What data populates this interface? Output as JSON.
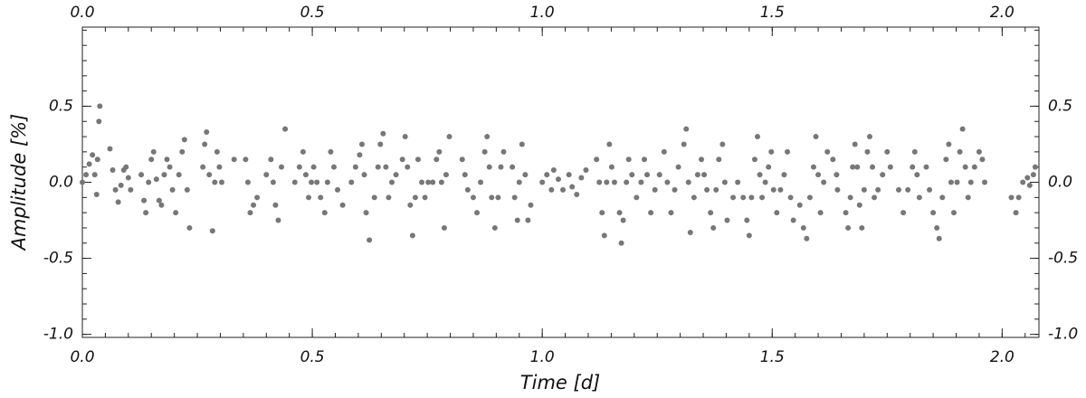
{
  "chart_data": {
    "type": "scatter",
    "xlabel": "Time [d]",
    "ylabel": "Amplitude [%]",
    "color": "#777777",
    "xlim": [
      0,
      2.08
    ],
    "ylim": [
      -1.02,
      1.02
    ],
    "xticks": [
      {
        "value": 0,
        "label": "0.0"
      },
      0.5,
      {
        "value": 1,
        "label": "1.0"
      },
      1.5,
      {
        "value": 2,
        "label": "2.0"
      }
    ],
    "yticks": [
      {
        "value": -1,
        "label": "-1.0"
      },
      -0.5,
      {
        "value": 0,
        "label": "0.0"
      },
      0.5
    ],
    "x": [
      0.0,
      0.008,
      0.015,
      0.022,
      0.027,
      0.031,
      0.033,
      0.036,
      0.038,
      0.06,
      0.066,
      0.072,
      0.078,
      0.084,
      0.09,
      0.095,
      0.1,
      0.105,
      0.128,
      0.134,
      0.138,
      0.144,
      0.15,
      0.155,
      0.161,
      0.167,
      0.172,
      0.178,
      0.184,
      0.19,
      0.196,
      0.203,
      0.21,
      0.217,
      0.222,
      0.228,
      0.233,
      0.262,
      0.266,
      0.27,
      0.276,
      0.283,
      0.288,
      0.293,
      0.298,
      0.303,
      0.33,
      0.355,
      0.36,
      0.365,
      0.372,
      0.38,
      0.4,
      0.41,
      0.415,
      0.42,
      0.426,
      0.433,
      0.441,
      0.462,
      0.472,
      0.48,
      0.486,
      0.492,
      0.498,
      0.503,
      0.51,
      0.518,
      0.527,
      0.533,
      0.54,
      0.547,
      0.555,
      0.566,
      0.585,
      0.594,
      0.603,
      0.608,
      0.613,
      0.617,
      0.624,
      0.635,
      0.643,
      0.648,
      0.654,
      0.66,
      0.666,
      0.673,
      0.682,
      0.696,
      0.702,
      0.707,
      0.713,
      0.718,
      0.724,
      0.73,
      0.738,
      0.745,
      0.752,
      0.762,
      0.77,
      0.776,
      0.781,
      0.787,
      0.791,
      0.798,
      0.826,
      0.832,
      0.838,
      0.85,
      0.858,
      0.866,
      0.875,
      0.88,
      0.885,
      0.89,
      0.897,
      0.904,
      0.91,
      0.916,
      0.935,
      0.94,
      0.946,
      0.95,
      0.956,
      0.963,
      0.969,
      0.975,
      1.0,
      1.01,
      1.02,
      1.025,
      1.035,
      1.045,
      1.058,
      1.065,
      1.075,
      1.085,
      1.095,
      1.118,
      1.124,
      1.13,
      1.135,
      1.14,
      1.146,
      1.151,
      1.157,
      1.168,
      1.172,
      1.176,
      1.183,
      1.188,
      1.195,
      1.205,
      1.215,
      1.222,
      1.228,
      1.236,
      1.245,
      1.255,
      1.265,
      1.272,
      1.28,
      1.288,
      1.296,
      1.308,
      1.313,
      1.318,
      1.322,
      1.33,
      1.338,
      1.346,
      1.352,
      1.358,
      1.366,
      1.372,
      1.378,
      1.384,
      1.392,
      1.397,
      1.402,
      1.415,
      1.425,
      1.437,
      1.445,
      1.45,
      1.455,
      1.462,
      1.468,
      1.473,
      1.478,
      1.485,
      1.492,
      1.498,
      1.503,
      1.51,
      1.518,
      1.526,
      1.533,
      1.54,
      1.546,
      1.56,
      1.568,
      1.575,
      1.582,
      1.59,
      1.595,
      1.6,
      1.605,
      1.612,
      1.62,
      1.632,
      1.64,
      1.642,
      1.66,
      1.665,
      1.67,
      1.675,
      1.68,
      1.685,
      1.69,
      1.695,
      1.7,
      1.707,
      1.712,
      1.718,
      1.722,
      1.73,
      1.74,
      1.75,
      1.757,
      1.775,
      1.785,
      1.795,
      1.805,
      1.81,
      1.815,
      1.82,
      1.835,
      1.842,
      1.85,
      1.858,
      1.863,
      1.87,
      1.878,
      1.884,
      1.889,
      1.895,
      1.902,
      1.908,
      1.914,
      1.92,
      1.926,
      1.932,
      1.94,
      1.95,
      1.957,
      1.962,
      2.02,
      2.03,
      2.036,
      2.045,
      2.055,
      2.06,
      2.068,
      2.072
    ],
    "values": [
      0.0,
      0.05,
      0.12,
      0.18,
      0.05,
      -0.08,
      0.15,
      0.4,
      0.5,
      0.22,
      0.08,
      -0.05,
      -0.13,
      -0.02,
      0.08,
      0.1,
      0.03,
      -0.05,
      0.05,
      -0.12,
      -0.2,
      0.0,
      0.15,
      0.2,
      0.02,
      -0.12,
      -0.15,
      0.05,
      0.15,
      0.1,
      -0.05,
      -0.2,
      0.05,
      0.2,
      0.28,
      -0.05,
      -0.3,
      0.1,
      0.25,
      0.33,
      0.05,
      -0.32,
      0.0,
      0.2,
      0.1,
      0.0,
      0.15,
      0.15,
      0.0,
      -0.2,
      -0.15,
      -0.1,
      0.05,
      0.15,
      0.0,
      -0.15,
      -0.25,
      0.1,
      0.35,
      0.0,
      0.1,
      0.2,
      0.05,
      -0.1,
      0.0,
      0.1,
      0.0,
      -0.1,
      -0.2,
      0.0,
      0.2,
      0.1,
      -0.05,
      -0.15,
      0.0,
      0.1,
      0.18,
      0.25,
      0.05,
      -0.2,
      -0.38,
      -0.1,
      0.1,
      0.25,
      0.32,
      0.1,
      -0.1,
      0.0,
      0.05,
      0.15,
      0.3,
      0.1,
      -0.15,
      -0.35,
      -0.1,
      0.15,
      0.0,
      -0.1,
      0.0,
      0.0,
      0.15,
      0.2,
      0.0,
      -0.3,
      0.05,
      0.3,
      0.15,
      0.05,
      -0.05,
      -0.1,
      -0.2,
      0.0,
      0.2,
      0.3,
      0.1,
      -0.1,
      -0.3,
      -0.1,
      0.1,
      0.2,
      0.1,
      -0.1,
      -0.25,
      0.0,
      0.25,
      0.05,
      -0.25,
      -0.15,
      0.0,
      0.05,
      -0.05,
      0.08,
      0.02,
      -0.05,
      0.05,
      -0.03,
      -0.08,
      0.03,
      0.08,
      0.15,
      0.0,
      -0.2,
      -0.35,
      0.0,
      0.25,
      0.1,
      0.0,
      -0.2,
      -0.4,
      -0.25,
      0.0,
      0.15,
      0.05,
      -0.1,
      0.0,
      0.15,
      0.05,
      -0.2,
      -0.05,
      0.05,
      0.2,
      0.0,
      -0.2,
      -0.05,
      0.1,
      0.25,
      0.35,
      0.0,
      -0.33,
      -0.1,
      0.05,
      0.15,
      0.05,
      -0.05,
      -0.2,
      -0.3,
      -0.05,
      0.15,
      0.25,
      0.0,
      -0.25,
      -0.1,
      0.0,
      -0.1,
      -0.25,
      -0.35,
      -0.1,
      0.15,
      0.3,
      0.05,
      -0.1,
      0.0,
      0.1,
      0.2,
      -0.05,
      -0.2,
      -0.05,
      0.05,
      0.2,
      -0.1,
      -0.25,
      -0.15,
      -0.3,
      -0.37,
      -0.1,
      0.1,
      0.3,
      0.05,
      -0.2,
      0.0,
      0.2,
      0.15,
      0.05,
      -0.05,
      -0.2,
      -0.3,
      -0.1,
      0.1,
      0.25,
      0.1,
      -0.15,
      -0.3,
      -0.05,
      0.2,
      0.3,
      0.1,
      -0.1,
      -0.05,
      0.05,
      0.2,
      0.1,
      -0.05,
      -0.2,
      -0.05,
      0.1,
      0.2,
      0.05,
      -0.1,
      0.1,
      -0.05,
      -0.2,
      -0.3,
      -0.37,
      -0.1,
      0.15,
      0.25,
      0.0,
      -0.2,
      0.0,
      0.2,
      0.35,
      0.1,
      -0.1,
      0.0,
      0.1,
      0.2,
      0.15,
      0.0,
      -0.1,
      -0.2,
      -0.1,
      0.0,
      0.03,
      -0.02,
      0.05,
      0.1
    ]
  }
}
